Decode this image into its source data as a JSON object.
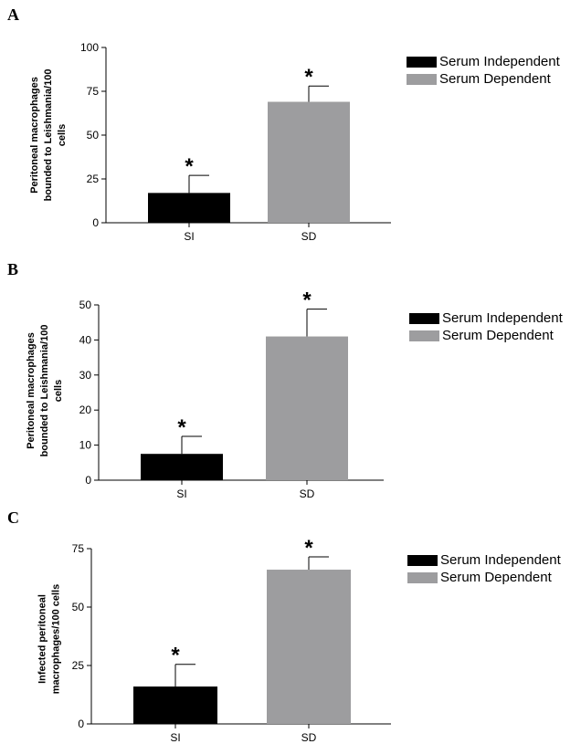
{
  "colors": {
    "serum_independent": "#000000",
    "serum_dependent": "#9d9d9f",
    "axis": "#000000"
  },
  "chart_data": [
    {
      "panel": "A",
      "type": "bar",
      "categories": [
        "SI",
        "SD"
      ],
      "values": [
        17,
        69
      ],
      "errors": [
        10,
        9
      ],
      "annotations": [
        "*",
        "*"
      ],
      "ylabel": "Peritoneal macrophages bounded to Leishmania/100 cells",
      "ylabel_lines": [
        "Peritoneal macrophages",
        "bounded to Leishmania/100",
        "cells"
      ],
      "ylim": [
        0,
        100
      ],
      "yticks": [
        0,
        25,
        50,
        75,
        100
      ],
      "legend": [
        "Serum Independent",
        "Serum Dependent"
      ],
      "grid": false
    },
    {
      "panel": "B",
      "type": "bar",
      "categories": [
        "SI",
        "SD"
      ],
      "values": [
        7.5,
        41
      ],
      "errors": [
        5,
        7.8
      ],
      "annotations": [
        "*",
        "*"
      ],
      "ylabel": "Peritoneal macrophages bounded to Leishmania/100 cells",
      "ylabel_lines": [
        "Peritoneal macrophages",
        "bounded to Leishmania/100",
        "cells"
      ],
      "ylim": [
        0,
        50
      ],
      "yticks": [
        0,
        10,
        20,
        30,
        40,
        50
      ],
      "legend": [
        "Serum Independent",
        "Serum Dependent"
      ],
      "grid": false
    },
    {
      "panel": "C",
      "type": "bar",
      "categories": [
        "SI",
        "SD"
      ],
      "values": [
        16,
        66
      ],
      "errors": [
        9.5,
        5.5
      ],
      "annotations": [
        "*",
        "*"
      ],
      "ylabel": "Infected peritoneal macrophages/100 cells",
      "ylabel_lines": [
        "Infected peritoneal",
        "macrophages/100 cells"
      ],
      "ylim": [
        0,
        75
      ],
      "yticks": [
        0,
        25,
        50,
        75
      ],
      "legend": [
        "Serum Independent",
        "Serum Dependent"
      ],
      "grid": false
    }
  ]
}
